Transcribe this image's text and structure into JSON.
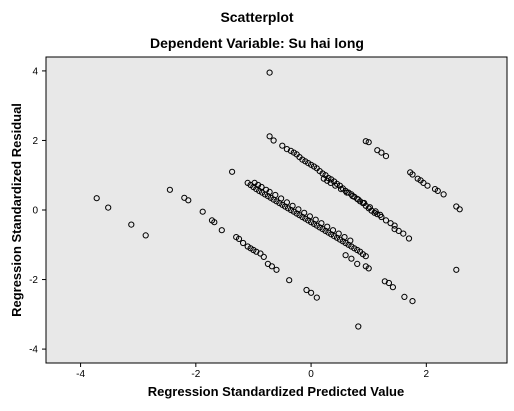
{
  "chart_data": {
    "type": "scatter",
    "title": "Scatterplot",
    "subtitle": "Dependent Variable: Su hai long",
    "xlabel": "Regression Standardized Predicted Value",
    "ylabel": "Regression Standardized Residual",
    "xlim": [
      -4.6,
      3.4
    ],
    "ylim": [
      -4.4,
      4.4
    ],
    "xticks": [
      -4,
      -2,
      0,
      2
    ],
    "yticks": [
      -4,
      -2,
      0,
      2,
      4
    ],
    "grid": false,
    "marker_color": "#000000",
    "plot_background": "#e8e8e8",
    "points": [
      [
        -3.72,
        0.34
      ],
      [
        -3.52,
        0.07
      ],
      [
        -3.12,
        -0.42
      ],
      [
        -2.87,
        -0.73
      ],
      [
        -2.45,
        0.58
      ],
      [
        -2.2,
        0.35
      ],
      [
        -2.13,
        0.28
      ],
      [
        -1.88,
        -0.05
      ],
      [
        -1.72,
        -0.3
      ],
      [
        -1.68,
        -0.35
      ],
      [
        -1.55,
        -0.58
      ],
      [
        -1.3,
        -0.78
      ],
      [
        -1.25,
        -0.83
      ],
      [
        -1.18,
        -0.95
      ],
      [
        -1.1,
        -1.05
      ],
      [
        -1.05,
        -1.1
      ],
      [
        -1.0,
        -1.15
      ],
      [
        -0.95,
        -1.2
      ],
      [
        -0.88,
        -1.25
      ],
      [
        -0.82,
        -1.35
      ],
      [
        -0.75,
        -1.55
      ],
      [
        -0.68,
        -1.62
      ],
      [
        -0.6,
        -1.72
      ],
      [
        -1.37,
        1.1
      ],
      [
        -1.1,
        0.78
      ],
      [
        -1.05,
        0.72
      ],
      [
        -1.0,
        0.66
      ],
      [
        -0.95,
        0.6
      ],
      [
        -0.9,
        0.55
      ],
      [
        -0.85,
        0.5
      ],
      [
        -0.8,
        0.45
      ],
      [
        -0.75,
        0.4
      ],
      [
        -0.7,
        0.35
      ],
      [
        -0.65,
        0.3
      ],
      [
        -0.6,
        0.25
      ],
      [
        -0.55,
        0.2
      ],
      [
        -0.5,
        0.15
      ],
      [
        -0.45,
        0.1
      ],
      [
        -0.4,
        0.05
      ],
      [
        -0.35,
        0.0
      ],
      [
        -0.3,
        -0.05
      ],
      [
        -0.25,
        -0.1
      ],
      [
        -0.2,
        -0.15
      ],
      [
        -0.15,
        -0.2
      ],
      [
        -0.1,
        -0.25
      ],
      [
        -0.05,
        -0.3
      ],
      [
        0.0,
        -0.35
      ],
      [
        0.05,
        -0.4
      ],
      [
        0.1,
        -0.45
      ],
      [
        0.15,
        -0.5
      ],
      [
        0.2,
        -0.55
      ],
      [
        0.25,
        -0.6
      ],
      [
        0.3,
        -0.65
      ],
      [
        0.35,
        -0.7
      ],
      [
        0.4,
        -0.75
      ],
      [
        0.45,
        -0.8
      ],
      [
        0.5,
        -0.85
      ],
      [
        0.55,
        -0.9
      ],
      [
        0.6,
        -0.95
      ],
      [
        0.65,
        -1.0
      ],
      [
        0.7,
        -1.05
      ],
      [
        0.75,
        -1.1
      ],
      [
        0.8,
        -1.15
      ],
      [
        0.85,
        -1.2
      ],
      [
        0.9,
        -1.27
      ],
      [
        0.95,
        -1.33
      ],
      [
        -0.98,
        0.78
      ],
      [
        -0.92,
        0.72
      ],
      [
        -0.86,
        0.66
      ],
      [
        -0.78,
        0.58
      ],
      [
        -0.72,
        0.52
      ],
      [
        -0.62,
        0.43
      ],
      [
        -0.52,
        0.33
      ],
      [
        -0.42,
        0.22
      ],
      [
        -0.32,
        0.12
      ],
      [
        -0.22,
        0.02
      ],
      [
        -0.12,
        -0.08
      ],
      [
        -0.02,
        -0.18
      ],
      [
        0.08,
        -0.28
      ],
      [
        0.18,
        -0.38
      ],
      [
        0.28,
        -0.48
      ],
      [
        0.38,
        -0.58
      ],
      [
        0.48,
        -0.68
      ],
      [
        0.58,
        -0.78
      ],
      [
        0.68,
        -0.88
      ],
      [
        -0.38,
        -2.02
      ],
      [
        -0.08,
        -2.3
      ],
      [
        0.0,
        -2.38
      ],
      [
        0.1,
        -2.52
      ],
      [
        -0.72,
        3.95
      ],
      [
        -0.72,
        2.12
      ],
      [
        -0.65,
        2.0
      ],
      [
        -0.5,
        1.85
      ],
      [
        -0.42,
        1.75
      ],
      [
        -0.35,
        1.7
      ],
      [
        -0.3,
        1.65
      ],
      [
        -0.25,
        1.6
      ],
      [
        -0.2,
        1.52
      ],
      [
        -0.15,
        1.45
      ],
      [
        -0.1,
        1.4
      ],
      [
        -0.05,
        1.35
      ],
      [
        0.0,
        1.3
      ],
      [
        0.05,
        1.25
      ],
      [
        0.1,
        1.2
      ],
      [
        0.15,
        1.12
      ],
      [
        0.2,
        1.05
      ],
      [
        0.25,
        1.0
      ],
      [
        0.3,
        0.92
      ],
      [
        0.35,
        0.88
      ],
      [
        0.4,
        0.82
      ],
      [
        0.45,
        0.75
      ],
      [
        0.5,
        0.7
      ],
      [
        0.55,
        0.62
      ],
      [
        0.6,
        0.55
      ],
      [
        0.65,
        0.5
      ],
      [
        0.7,
        0.45
      ],
      [
        0.75,
        0.38
      ],
      [
        0.8,
        0.32
      ],
      [
        0.85,
        0.25
      ],
      [
        0.9,
        0.2
      ],
      [
        0.95,
        0.12
      ],
      [
        1.0,
        0.05
      ],
      [
        1.05,
        -0.02
      ],
      [
        1.1,
        -0.08
      ],
      [
        1.15,
        -0.12
      ],
      [
        1.22,
        -0.2
      ],
      [
        1.3,
        -0.3
      ],
      [
        1.38,
        -0.38
      ],
      [
        1.45,
        -0.45
      ],
      [
        0.22,
        0.9
      ],
      [
        0.28,
        0.84
      ],
      [
        0.34,
        0.78
      ],
      [
        0.42,
        0.7
      ],
      [
        0.52,
        0.6
      ],
      [
        0.62,
        0.5
      ],
      [
        0.72,
        0.4
      ],
      [
        0.82,
        0.3
      ],
      [
        0.92,
        0.2
      ],
      [
        1.02,
        0.08
      ],
      [
        1.12,
        -0.04
      ],
      [
        1.2,
        -0.14
      ],
      [
        0.6,
        -1.3
      ],
      [
        0.7,
        -1.4
      ],
      [
        0.8,
        -1.55
      ],
      [
        0.95,
        -1.62
      ],
      [
        1.0,
        -1.68
      ],
      [
        0.82,
        -3.35
      ],
      [
        1.28,
        -2.05
      ],
      [
        1.35,
        -2.1
      ],
      [
        1.42,
        -2.22
      ],
      [
        1.62,
        -2.5
      ],
      [
        1.76,
        -2.62
      ],
      [
        0.95,
        1.98
      ],
      [
        1.0,
        1.95
      ],
      [
        1.15,
        1.72
      ],
      [
        1.22,
        1.65
      ],
      [
        1.3,
        1.55
      ],
      [
        1.45,
        -0.55
      ],
      [
        1.52,
        -0.6
      ],
      [
        1.6,
        -0.68
      ],
      [
        1.7,
        -0.82
      ],
      [
        1.72,
        1.08
      ],
      [
        1.76,
        1.02
      ],
      [
        1.85,
        0.9
      ],
      [
        1.9,
        0.85
      ],
      [
        1.95,
        0.78
      ],
      [
        2.02,
        0.7
      ],
      [
        2.15,
        0.6
      ],
      [
        2.2,
        0.55
      ],
      [
        2.3,
        0.45
      ],
      [
        2.52,
        0.1
      ],
      [
        2.58,
        0.02
      ],
      [
        2.52,
        -1.72
      ]
    ]
  }
}
